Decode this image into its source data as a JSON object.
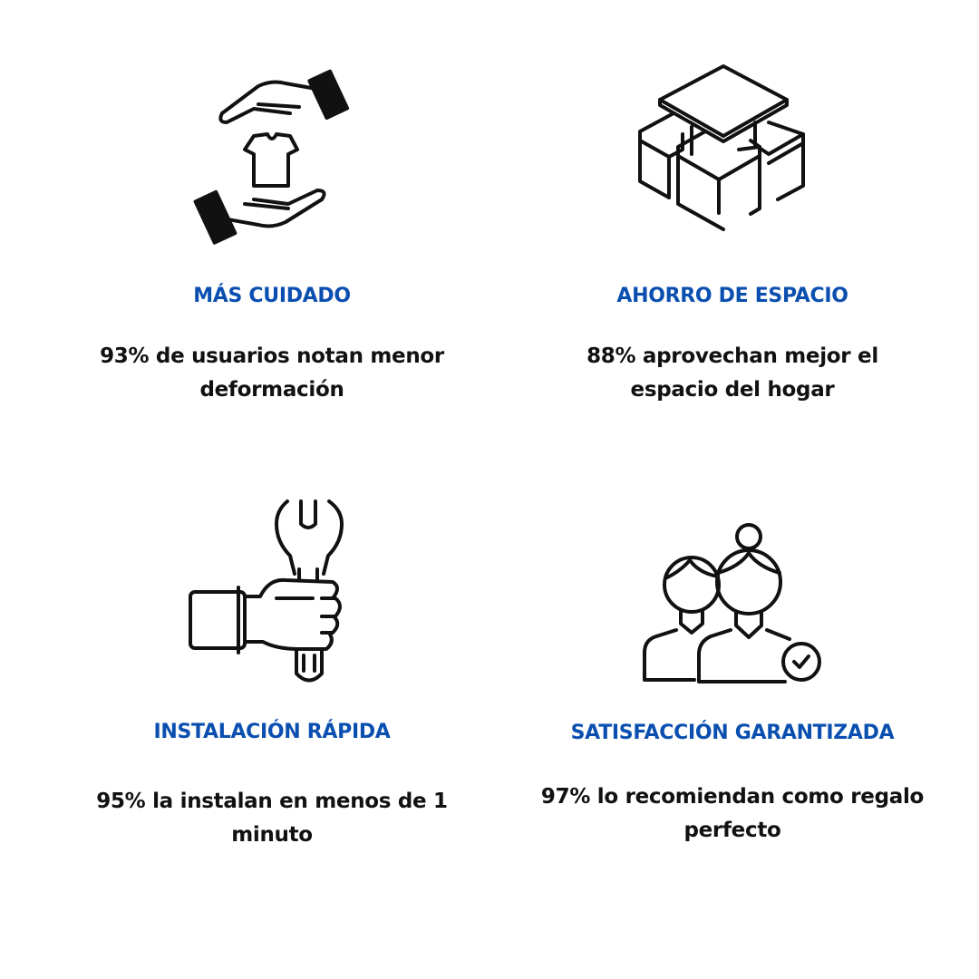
{
  "accent_color": "#0a4fb0",
  "features": [
    {
      "icon": "hands-shirt-icon",
      "title": "MÁS CUIDADO",
      "description": "93% de usuarios notan menor deformación"
    },
    {
      "icon": "storage-boxes-icon",
      "title": "AHORRO DE ESPACIO",
      "description": "88% aprovechan mejor el espacio del hogar"
    },
    {
      "icon": "hand-wrench-icon",
      "title": "INSTALACIÓN RÁPIDA",
      "description": "95% la instalan en menos de 1 minuto"
    },
    {
      "icon": "users-check-icon",
      "title": "SATISFACCIÓN GARANTIZADA",
      "description": "97% lo recomiendan como regalo perfecto"
    }
  ]
}
